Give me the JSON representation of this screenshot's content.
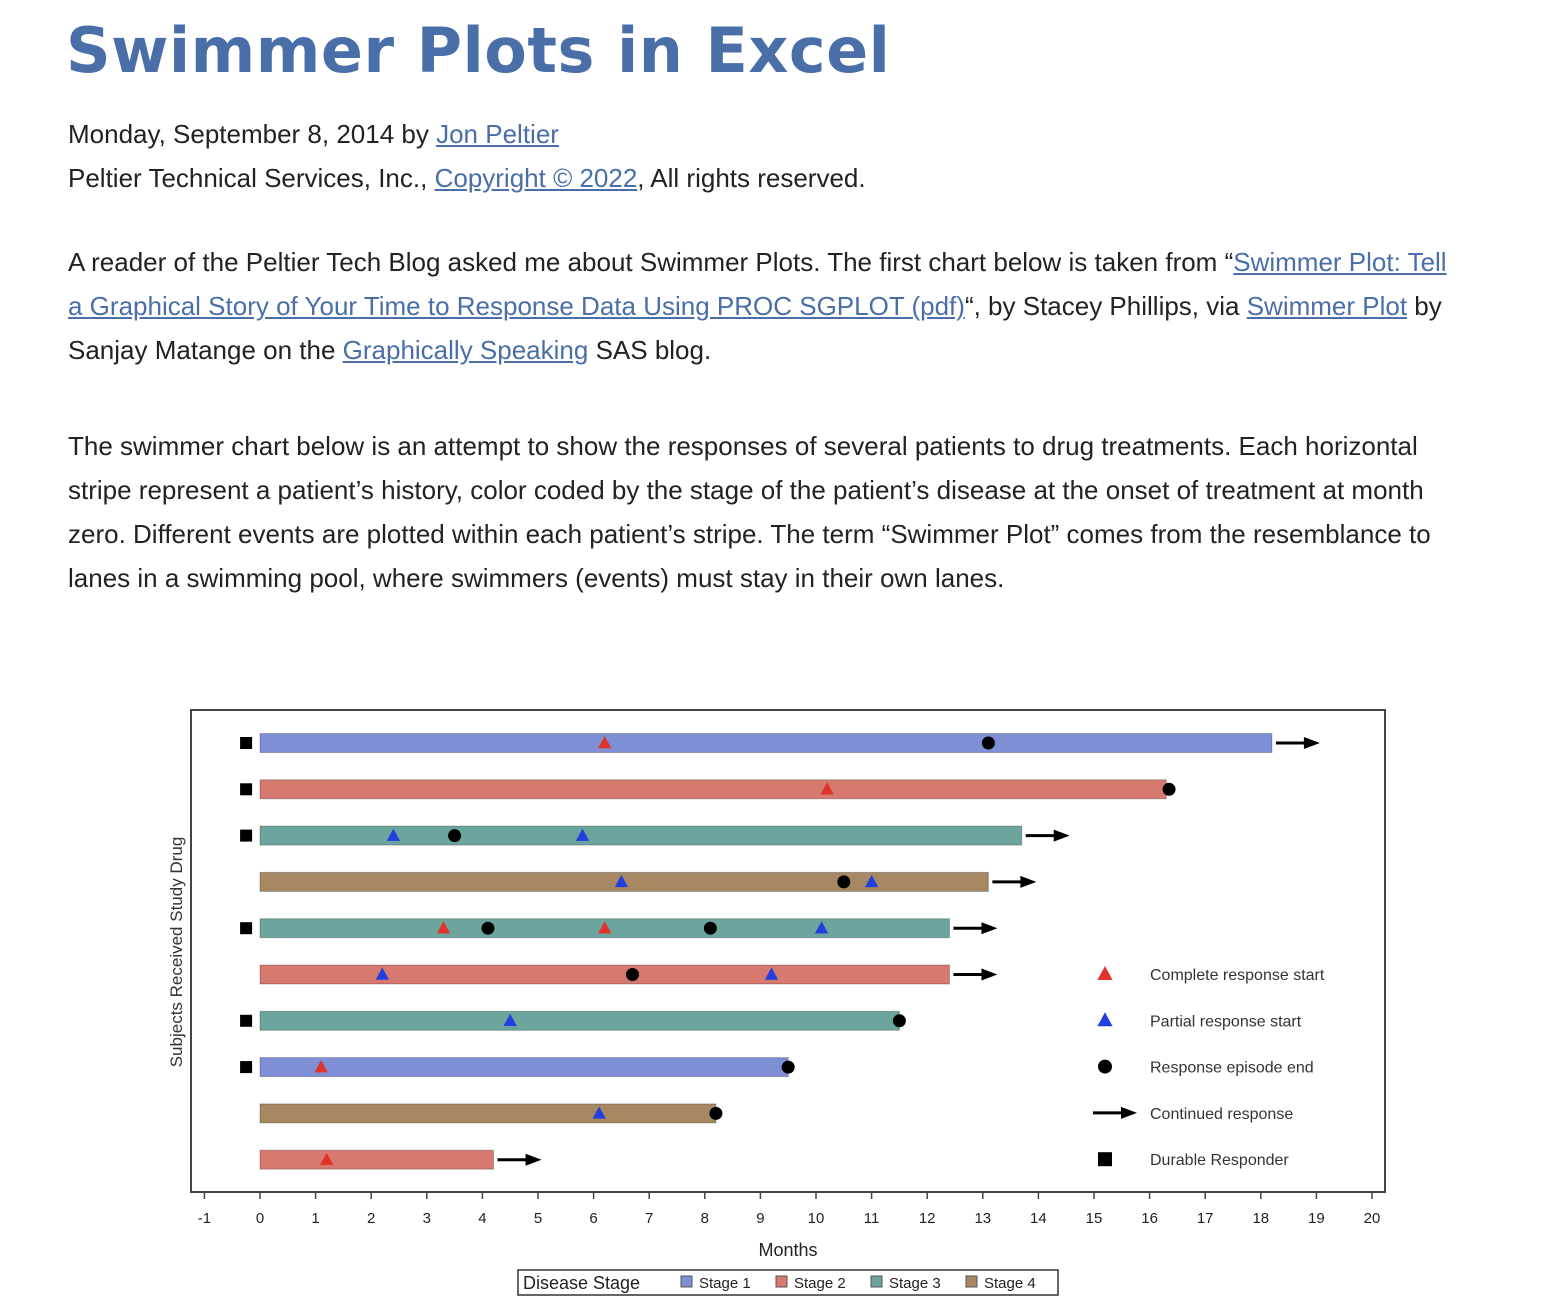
{
  "article": {
    "title": "Swimmer Plots in Excel",
    "byline": {
      "date": "Monday, September 8, 2014",
      "by": " by ",
      "author": "Jon Peltier"
    },
    "copyright": {
      "prefix": "Peltier Technical Services, Inc., ",
      "link": "Copyright © 2022",
      "suffix": ", All rights reserved."
    },
    "para1": {
      "t1": "A reader of the Peltier Tech Blog asked me about Swimmer Plots. The first chart below is taken from “",
      "link1": "Swimmer Plot: Tell a Graphical Story of Your Time to Response Data Using PROC SGPLOT (pdf)",
      "t2": "“, by Stacey Phillips, via ",
      "link2": "Swimmer Plot",
      "t3": " by Sanjay Matange on the ",
      "link3": "Graphically Speaking",
      "t4": " SAS blog."
    },
    "para2": "The swimmer chart below is an attempt to show the responses of several patients to drug treatments. Each horizontal stripe represent a patient’s history, color coded by the stage of the patient’s disease at the onset of treatment at month zero. Different events are plotted within each patient’s stripe. The term “Swimmer Plot” comes from the resemblance to lanes in a swimming pool, where swimmers (events) must stay in their own lanes."
  },
  "colors": {
    "title": "#4a6ea8",
    "link": "#4a6ea8",
    "text": "#222222",
    "stage1": "#7f8fd6",
    "stage2": "#d6796f",
    "stage3": "#6ca59e",
    "stage4": "#a88863",
    "complete": "#e0332b",
    "partial": "#1f3fe0"
  },
  "chart_data": {
    "type": "swimmer",
    "xlabel": "Months",
    "ylabel": "Subjects Received Study Drug",
    "xlim": [
      -1,
      20
    ],
    "xticks": [
      -1,
      0,
      1,
      2,
      3,
      4,
      5,
      6,
      7,
      8,
      9,
      10,
      11,
      12,
      13,
      14,
      15,
      16,
      17,
      18,
      19,
      20
    ],
    "stage_legend": {
      "title": "Disease Stage",
      "items": [
        {
          "label": "Stage 1",
          "stage": 1
        },
        {
          "label": "Stage 2",
          "stage": 2
        },
        {
          "label": "Stage 3",
          "stage": 3
        },
        {
          "label": "Stage 4",
          "stage": 4
        }
      ]
    },
    "event_legend": [
      {
        "label": "Complete response start",
        "symbol": "complete"
      },
      {
        "label": "Partial response start",
        "symbol": "partial"
      },
      {
        "label": "Response episode end",
        "symbol": "end"
      },
      {
        "label": "Continued response",
        "symbol": "arrow"
      },
      {
        "label": "Durable Responder",
        "symbol": "durable"
      }
    ],
    "subjects": [
      {
        "stage": 1,
        "end": 18.2,
        "durable": true,
        "continued": true,
        "complete": [
          6.2
        ],
        "partial": [],
        "ends": [
          13.1
        ]
      },
      {
        "stage": 2,
        "end": 16.3,
        "durable": true,
        "continued": false,
        "complete": [
          10.2
        ],
        "partial": [],
        "ends": [
          16.35
        ]
      },
      {
        "stage": 3,
        "end": 13.7,
        "durable": true,
        "continued": true,
        "complete": [],
        "partial": [
          2.4,
          5.8
        ],
        "ends": [
          3.5
        ]
      },
      {
        "stage": 4,
        "end": 13.1,
        "durable": false,
        "continued": true,
        "complete": [],
        "partial": [
          6.5,
          11.0
        ],
        "ends": [
          10.5
        ]
      },
      {
        "stage": 3,
        "end": 12.4,
        "durable": true,
        "continued": true,
        "complete": [
          3.3,
          6.2
        ],
        "partial": [
          10.1
        ],
        "ends": [
          4.1,
          8.1
        ]
      },
      {
        "stage": 2,
        "end": 12.4,
        "durable": false,
        "continued": true,
        "complete": [],
        "partial": [
          2.2,
          9.2
        ],
        "ends": [
          6.7
        ]
      },
      {
        "stage": 3,
        "end": 11.5,
        "durable": true,
        "continued": false,
        "complete": [],
        "partial": [
          4.5
        ],
        "ends": [
          11.5
        ]
      },
      {
        "stage": 1,
        "end": 9.5,
        "durable": true,
        "continued": false,
        "complete": [
          1.1
        ],
        "partial": [],
        "ends": [
          9.5
        ]
      },
      {
        "stage": 4,
        "end": 8.2,
        "durable": false,
        "continued": false,
        "complete": [],
        "partial": [
          6.1
        ],
        "ends": [
          8.2
        ]
      },
      {
        "stage": 2,
        "end": 4.2,
        "durable": false,
        "continued": true,
        "complete": [
          1.2
        ],
        "partial": [],
        "ends": []
      }
    ]
  }
}
